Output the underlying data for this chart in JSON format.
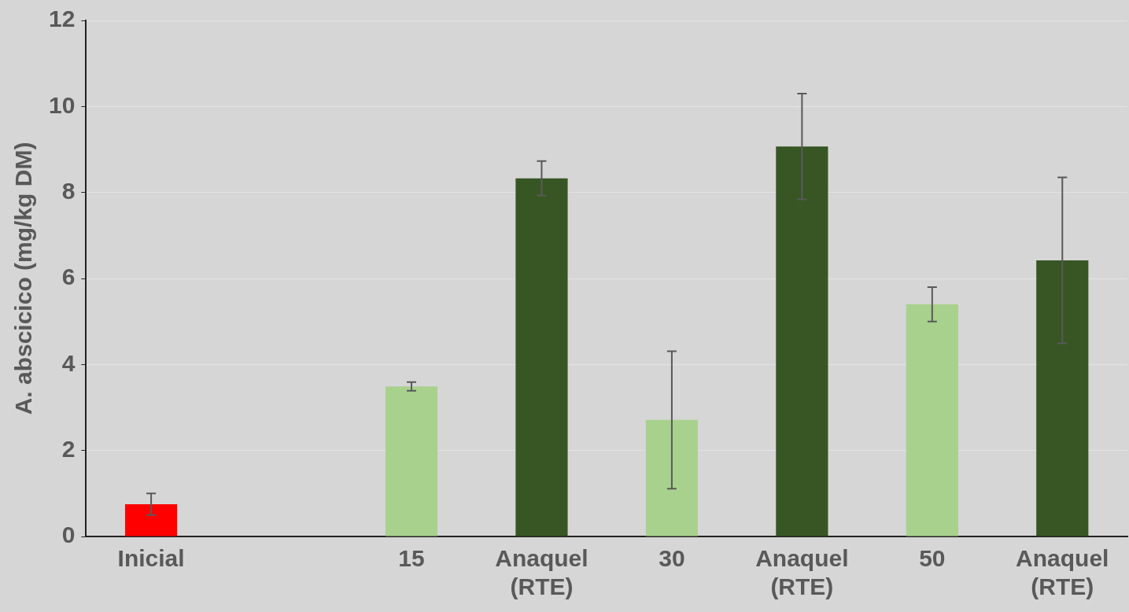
{
  "chart_data": {
    "type": "bar",
    "ylabel": "A. abscicico (mg/kg DM)",
    "categories": [
      "Inicial",
      null,
      "15",
      "Anaquel\n(RTE)",
      "30",
      "Anaquel\n(RTE)",
      "50",
      "Anaquel\n(RTE)"
    ],
    "values": [
      0.75,
      null,
      3.49,
      8.33,
      2.71,
      9.07,
      5.4,
      6.42
    ],
    "colors": [
      "#ff0000",
      "#a9d18e",
      "#a9d18e",
      "#375623",
      "#a9d18e",
      "#375623",
      "#a9d18e",
      "#375623"
    ],
    "errors": [
      0.25,
      null,
      0.1,
      0.4,
      1.6,
      1.23,
      0.4,
      1.93
    ],
    "ylim": [
      0,
      12
    ],
    "yticks": [
      0,
      2,
      4,
      6,
      8,
      10,
      12
    ],
    "grid": "y"
  }
}
